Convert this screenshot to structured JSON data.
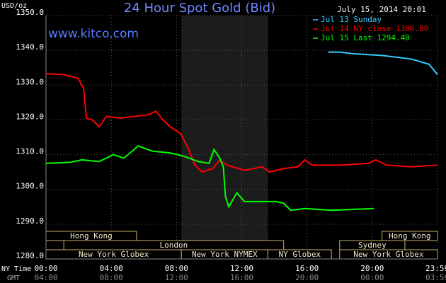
{
  "chart_data": {
    "type": "line",
    "title": "24 Hour Spot Gold (Bid)",
    "site": "www.kitco.com",
    "timestamp": "July 15, 2014 20:01",
    "ylabel": "USD/oz",
    "x_row_labels": [
      "NY Time",
      "GMT"
    ],
    "xlim": [
      0,
      24
    ],
    "ylim": [
      1280,
      1350
    ],
    "yticks": [
      {
        "value": 1280,
        "label": "1280.0"
      },
      {
        "value": 1290,
        "label": "1290.0"
      },
      {
        "value": 1300,
        "label": "1300.0"
      },
      {
        "value": 1310,
        "label": "1310.0"
      },
      {
        "value": 1320,
        "label": "1320.0"
      },
      {
        "value": 1330,
        "label": "1330.0"
      },
      {
        "value": 1340,
        "label": "1340.0"
      },
      {
        "value": 1350,
        "label": "1350.0"
      }
    ],
    "xticks": [
      {
        "value": 0,
        "label": "00:00"
      },
      {
        "value": 4,
        "label": "04:00"
      },
      {
        "value": 8,
        "label": "08:00"
      },
      {
        "value": 12,
        "label": "12:00"
      },
      {
        "value": 16,
        "label": "16:00"
      },
      {
        "value": 20,
        "label": "20:00"
      },
      {
        "value": 23.98,
        "label": "23:59"
      }
    ],
    "xticks_gmt": [
      "04:00",
      "08:00",
      "12:00",
      "16:00",
      "20:00",
      "00:00",
      "03:59"
    ],
    "grid": true,
    "series": [
      {
        "name": "Jul 13 Sunday",
        "color": "#33ccff",
        "x": [
          17.3,
          18.0,
          18.9,
          20.65,
          22.39,
          23.48,
          24
        ],
        "values": [
          1339.5,
          1339.5,
          1339,
          1338.5,
          1337.5,
          1336,
          1333
        ]
      },
      {
        "name": "Jul 14 NY close 1306.80",
        "color": "#ff0000",
        "x": [
          0,
          1.09,
          1.96,
          2.3,
          2.48,
          2.83,
          3.26,
          3.7,
          4.57,
          5.43,
          6.3,
          6.74,
          7.17,
          7.61,
          8.26,
          8.7,
          9.13,
          9.57,
          10.22,
          10.65,
          11.09,
          12.17,
          13.26,
          13.7,
          14.57,
          15.43,
          15.87,
          16.3,
          18.04,
          19.78,
          20.22,
          20.87,
          22.39,
          24
        ],
        "values": [
          1333.3,
          1333,
          1332,
          1329,
          1320.5,
          1320,
          1318,
          1321,
          1320.5,
          1321,
          1321.5,
          1322.5,
          1320,
          1318,
          1316,
          1312,
          1307,
          1305,
          1306,
          1308.5,
          1307,
          1305.5,
          1306.5,
          1305,
          1306,
          1306.5,
          1308.5,
          1307,
          1307,
          1307.5,
          1308.5,
          1307,
          1306.5,
          1307
        ]
      },
      {
        "name": "Jul 15 Last 1294.40",
        "color": "#00ff00",
        "x": [
          0,
          1.5,
          2.2,
          3.26,
          4.13,
          4.78,
          5.65,
          6.52,
          7.61,
          8.48,
          9.35,
          10.0,
          10.3,
          10.65,
          10.87,
          11.0,
          11.2,
          11.7,
          12.17,
          14.13,
          14.57,
          15.0,
          15.87,
          17.5,
          20.1
        ],
        "values": [
          1307.5,
          1307.8,
          1308.5,
          1308,
          1310,
          1309,
          1312.5,
          1311,
          1310.5,
          1309.5,
          1308,
          1307.5,
          1311.5,
          1309,
          1306.5,
          1298,
          1295,
          1299,
          1296.5,
          1296.5,
          1296,
          1294,
          1294.5,
          1294,
          1294.5
        ]
      }
    ],
    "sessions": [
      {
        "label": "Hong Kong",
        "row": 0,
        "start": 0,
        "end": 5.55
      },
      {
        "label": "London",
        "row": 1,
        "start": 1.09,
        "end": 14.57
      },
      {
        "label": "New York Globex",
        "row": 2,
        "start": 0,
        "end": 8.3
      },
      {
        "label": "New York NYMEX",
        "row": 2,
        "start": 8.3,
        "end": 13.6,
        "highlight": true
      },
      {
        "label": "NY Globex",
        "row": 2,
        "start": 13.6,
        "end": 17.5
      },
      {
        "label": "Hong Kong",
        "row": 0,
        "start": 20.6,
        "end": 24
      },
      {
        "label": "Sydney",
        "row": 1,
        "start": 18,
        "end": 22
      },
      {
        "label": "New York Globex",
        "row": 2,
        "start": 18,
        "end": 24
      }
    ]
  }
}
